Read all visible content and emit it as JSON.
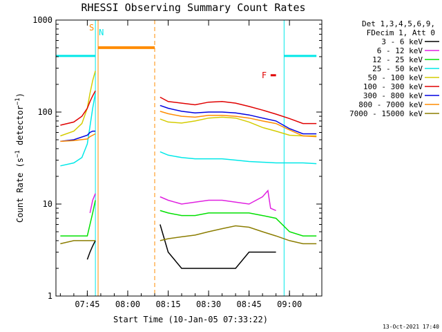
{
  "chart_data": {
    "type": "line",
    "title": "RHESSI Observing Summary Count Rates",
    "xlabel": "Start Time (10-Jan-05 07:33:22)",
    "ylabel": {
      "prefix": "Count Rate (s",
      "sup1": "−1",
      "mid": " detector",
      "sup2": "−1",
      "suffix": ")"
    },
    "timestamp": "13-Oct-2021 17:40",
    "x_unit": "time (HH:MM, 10-Jan-05)",
    "xlim": [
      "07:33:22",
      "09:12:00"
    ],
    "ylim": [
      1,
      1000
    ],
    "yscale": "log",
    "xticks": [
      "07:45",
      "08:00",
      "08:15",
      "08:30",
      "08:45",
      "09:00"
    ],
    "yticks": [
      {
        "value": 1,
        "label": "1"
      },
      {
        "value": 10,
        "label": "10"
      },
      {
        "value": 100,
        "label": "100"
      },
      {
        "value": 1000,
        "label": "1000"
      }
    ],
    "legend": {
      "placement": "right, outside plot",
      "header": [
        "Det 1,3,4,5,6,9,",
        "FDecim 1, Att 0"
      ]
    },
    "series": [
      {
        "name": "3 - 6 keV",
        "color": "#000000",
        "x": [
          "07:45",
          "07:46",
          "07:47",
          "07:48",
          "08:12",
          "08:15",
          "08:20",
          "08:25",
          "08:30",
          "08:35",
          "08:40",
          "08:45",
          "08:50",
          "08:55"
        ],
        "y": [
          2.5,
          3.0,
          3.5,
          4.0,
          6.0,
          3.0,
          2.0,
          2.0,
          2.0,
          2.0,
          2.0,
          3.0,
          3.0,
          3.0
        ]
      },
      {
        "name": "6 - 12 keV",
        "color": "#e020e0",
        "x": [
          "07:46",
          "07:47",
          "07:48",
          "08:12",
          "08:15",
          "08:20",
          "08:25",
          "08:30",
          "08:35",
          "08:40",
          "08:45",
          "08:50",
          "08:52",
          "08:53",
          "08:55"
        ],
        "y": [
          8,
          11,
          13,
          12,
          11,
          10,
          10.5,
          11,
          11,
          10.5,
          10,
          12,
          14,
          9,
          8.5
        ]
      },
      {
        "name": "12 - 25 keV",
        "color": "#00e000",
        "x": [
          "07:35",
          "07:40",
          "07:45",
          "07:46",
          "07:47",
          "07:48",
          "08:12",
          "08:15",
          "08:20",
          "08:25",
          "08:30",
          "08:35",
          "08:40",
          "08:45",
          "08:50",
          "08:55",
          "09:00",
          "09:05",
          "09:10"
        ],
        "y": [
          4.5,
          4.5,
          4.5,
          6,
          8,
          11,
          8.5,
          8,
          7.5,
          7.5,
          8,
          8,
          8,
          8,
          7.5,
          7,
          5,
          4.5,
          4.5
        ]
      },
      {
        "name": "25 - 50 keV",
        "color": "#00e8e8",
        "x": [
          "07:35",
          "07:40",
          "07:43",
          "07:45",
          "07:46",
          "07:47",
          "07:48",
          "08:12",
          "08:15",
          "08:20",
          "08:25",
          "08:30",
          "08:35",
          "08:40",
          "08:45",
          "08:50",
          "08:55",
          "09:00",
          "09:05",
          "09:10"
        ],
        "y": [
          26,
          28,
          32,
          45,
          70,
          110,
          160,
          37,
          34,
          32,
          31,
          31,
          31,
          30,
          29,
          28.5,
          28,
          28,
          28,
          27.5
        ]
      },
      {
        "name": "50 - 100 keV",
        "color": "#d4cc00",
        "x": [
          "07:35",
          "07:40",
          "07:43",
          "07:45",
          "07:46",
          "07:47",
          "07:48",
          "08:12",
          "08:15",
          "08:20",
          "08:25",
          "08:30",
          "08:35",
          "08:40",
          "08:45",
          "08:50",
          "08:55",
          "09:00",
          "09:05",
          "09:10"
        ],
        "y": [
          55,
          62,
          75,
          110,
          160,
          220,
          280,
          84,
          78,
          76,
          80,
          86,
          88,
          86,
          78,
          68,
          62,
          56,
          55,
          55
        ]
      },
      {
        "name": "100 - 300 keV",
        "color": "#e00000",
        "x": [
          "07:35",
          "07:40",
          "07:43",
          "07:45",
          "07:46",
          "07:47",
          "07:48",
          "08:12",
          "08:15",
          "08:20",
          "08:25",
          "08:30",
          "08:35",
          "08:40",
          "08:45",
          "08:50",
          "08:55",
          "09:00",
          "09:05",
          "09:10"
        ],
        "y": [
          72,
          78,
          90,
          110,
          130,
          150,
          170,
          145,
          130,
          125,
          120,
          128,
          130,
          125,
          115,
          105,
          95,
          85,
          75,
          75
        ]
      },
      {
        "name": "300 - 800 keV",
        "color": "#0000e0",
        "x": [
          "07:35",
          "07:40",
          "07:45",
          "07:46",
          "07:47",
          "07:48",
          "08:12",
          "08:15",
          "08:20",
          "08:25",
          "08:30",
          "08:35",
          "08:40",
          "08:45",
          "08:50",
          "08:55",
          "09:00",
          "09:05",
          "09:10"
        ],
        "y": [
          48,
          50,
          56,
          60,
          62,
          62,
          118,
          110,
          102,
          98,
          100,
          100,
          98,
          93,
          86,
          80,
          66,
          58,
          58
        ]
      },
      {
        "name": "800 - 7000 keV",
        "color": "#ff8c00",
        "x": [
          "07:35",
          "07:40",
          "07:45",
          "07:46",
          "07:47",
          "07:48",
          "08:12",
          "08:15",
          "08:20",
          "08:25",
          "08:30",
          "08:35",
          "08:40",
          "08:45",
          "08:50",
          "08:55",
          "09:00",
          "09:05",
          "09:10"
        ],
        "y": [
          48,
          49,
          51,
          54,
          56,
          58,
          102,
          96,
          90,
          88,
          92,
          92,
          90,
          86,
          80,
          75,
          64,
          55,
          54
        ]
      },
      {
        "name": "7000 - 15000 keV",
        "color": "#8b7d00",
        "x": [
          "07:35",
          "07:40",
          "07:45",
          "07:46",
          "07:47",
          "07:48",
          "08:12",
          "08:15",
          "08:20",
          "08:25",
          "08:30",
          "08:35",
          "08:40",
          "08:45",
          "08:50",
          "08:55",
          "09:00",
          "09:05",
          "09:10"
        ],
        "y": [
          3.7,
          4.0,
          4.0,
          4.0,
          4.0,
          4.0,
          4.0,
          4.2,
          4.4,
          4.6,
          5.0,
          5.4,
          5.8,
          5.6,
          5.0,
          4.5,
          4.0,
          3.7,
          3.7
        ]
      }
    ],
    "annotations": {
      "saa": {
        "label": "S",
        "color": "#ff8c00",
        "start": "07:49",
        "end": "08:10",
        "level": 0.9
      },
      "night": {
        "label": "N",
        "color": "#00e8e8",
        "start": "07:48",
        "end": "08:58"
      },
      "night_bars": [
        {
          "start": "07:33:22",
          "end": "07:48",
          "level": 0.87
        },
        {
          "start": "08:58",
          "end": "09:10",
          "level": 0.87
        }
      ],
      "flare": {
        "label": "F",
        "color": "#e00000",
        "start": "08:53",
        "end": "08:55",
        "level": 0.8
      }
    }
  }
}
